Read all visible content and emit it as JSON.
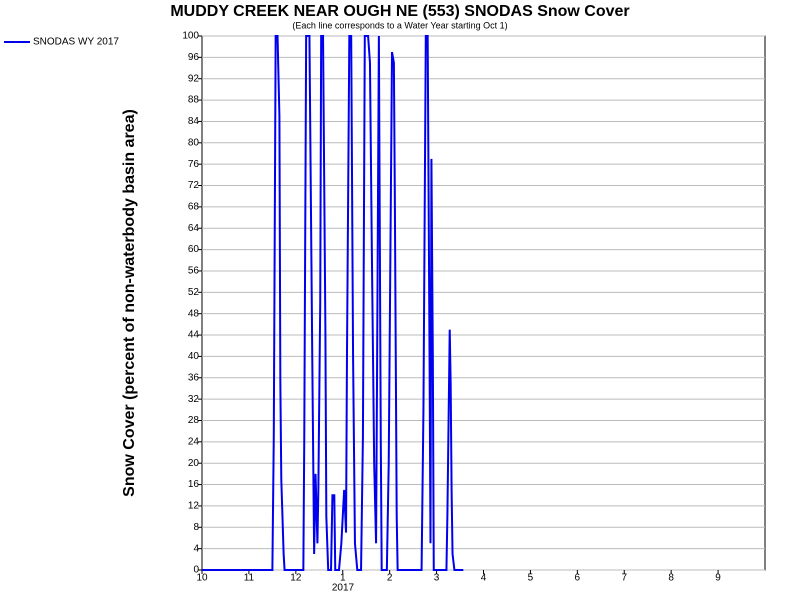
{
  "chart_data": {
    "type": "line",
    "title": "MUDDY CREEK NEAR OUGH NE (553) SNODAS Snow Cover",
    "subtitle": "(Each line corresponds to a Water Year starting Oct 1)",
    "y_label": "Snow Cover (percent of non-waterbody basin area)",
    "year_label": "2017",
    "grid": true,
    "legend": "outside-top-left",
    "xlim": [
      10,
      22
    ],
    "xticks": [
      10,
      11,
      12,
      {
        "value": 13,
        "label": "1"
      },
      {
        "value": 14,
        "label": "2"
      },
      {
        "value": 15,
        "label": "3"
      },
      {
        "value": 16,
        "label": "4"
      },
      {
        "value": 17,
        "label": "5"
      },
      {
        "value": 18,
        "label": "6"
      },
      {
        "value": 19,
        "label": "7"
      },
      {
        "value": 20,
        "label": "8"
      },
      {
        "value": 21,
        "label": "9"
      }
    ],
    "ylim": [
      0,
      100
    ],
    "yticks": [
      0,
      4,
      8,
      12,
      16,
      20,
      24,
      28,
      32,
      36,
      40,
      44,
      48,
      52,
      56,
      60,
      64,
      68,
      72,
      76,
      80,
      84,
      88,
      92,
      96,
      100
    ],
    "series": [
      {
        "name": "SNODAS WY 2017",
        "color": "#0000ee",
        "x": [
          10,
          11.5,
          11.53,
          11.57,
          11.61,
          11.65,
          11.67,
          11.69,
          11.74,
          11.76,
          12.16,
          12.18,
          12.22,
          12.29,
          12.35,
          12.39,
          12.42,
          12.46,
          12.48,
          12.52,
          12.54,
          12.58,
          12.63,
          12.65,
          12.69,
          12.75,
          12.78,
          12.82,
          12.84,
          12.92,
          12.97,
          13.03,
          13.07,
          13.09,
          13.14,
          13.18,
          13.22,
          13.26,
          13.31,
          13.39,
          13.43,
          13.47,
          13.54,
          13.58,
          13.62,
          13.67,
          13.71,
          13.73,
          13.77,
          13.81,
          13.83,
          13.94,
          13.98,
          14.05,
          14.09,
          14.11,
          14.15,
          14.17,
          14.68,
          14.72,
          14.77,
          14.81,
          14.85,
          14.87,
          14.89,
          14.92,
          14.94,
          15.21,
          15.23,
          15.28,
          15.3,
          15.32,
          15.34,
          15.38,
          15.57
        ],
        "values": [
          0,
          0,
          25,
          100,
          100,
          85,
          35,
          17,
          3,
          0,
          0,
          25,
          100,
          100,
          40,
          3,
          18,
          5,
          15,
          50,
          100,
          100,
          45,
          10,
          0,
          0,
          14,
          14,
          0,
          0,
          5,
          15,
          7,
          40,
          100,
          100,
          40,
          5,
          0,
          0,
          25,
          100,
          100,
          95,
          60,
          20,
          5,
          35,
          100,
          25,
          0,
          0,
          20,
          97,
          95,
          70,
          10,
          0,
          0,
          30,
          100,
          100,
          40,
          5,
          77,
          40,
          0,
          0,
          10,
          45,
          35,
          15,
          3,
          0,
          0
        ]
      }
    ]
  }
}
